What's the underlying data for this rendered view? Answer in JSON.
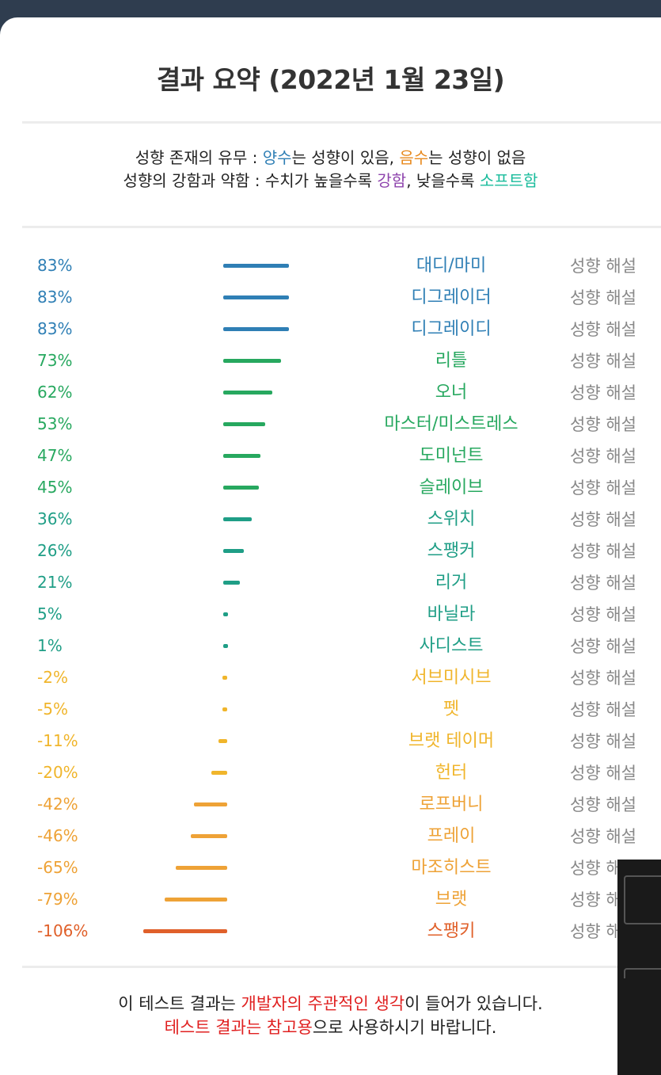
{
  "header": {
    "title": "결과 요약 (2022년 1월 23일)"
  },
  "legend": {
    "line1": {
      "prefix": "성향 존재의 유무 : ",
      "pos": "양수",
      "mid1": "는 성향이 있음, ",
      "neg": "음수",
      "mid2": "는 성향이 없음"
    },
    "line2": {
      "prefix": "성향의 강함과 약함 : 수치가 높을수록 ",
      "strong": "강함",
      "mid": ", 낮을수록 ",
      "soft": "소프트함"
    }
  },
  "interpret_label": "성향 해설",
  "results": [
    {
      "pct": "83%",
      "value": 83,
      "name": "대디/마미",
      "color": "#2f7fb5"
    },
    {
      "pct": "83%",
      "value": 83,
      "name": "디그레이더",
      "color": "#2f7fb5"
    },
    {
      "pct": "83%",
      "value": 83,
      "name": "디그레이디",
      "color": "#2f7fb5"
    },
    {
      "pct": "73%",
      "value": 73,
      "name": "리틀",
      "color": "#27a85f"
    },
    {
      "pct": "62%",
      "value": 62,
      "name": "오너",
      "color": "#27a85f"
    },
    {
      "pct": "53%",
      "value": 53,
      "name": "마스터/미스트레스",
      "color": "#27a85f"
    },
    {
      "pct": "47%",
      "value": 47,
      "name": "도미넌트",
      "color": "#27a85f"
    },
    {
      "pct": "45%",
      "value": 45,
      "name": "슬레이브",
      "color": "#27a85f"
    },
    {
      "pct": "36%",
      "value": 36,
      "name": "스위치",
      "color": "#1f9e86"
    },
    {
      "pct": "26%",
      "value": 26,
      "name": "스팽커",
      "color": "#1f9e86"
    },
    {
      "pct": "21%",
      "value": 21,
      "name": "리거",
      "color": "#1f9e86"
    },
    {
      "pct": "5%",
      "value": 5,
      "name": "바닐라",
      "color": "#1f9e86"
    },
    {
      "pct": "1%",
      "value": 1,
      "name": "사디스트",
      "color": "#1f9e86"
    },
    {
      "pct": "-2%",
      "value": -2,
      "name": "서브미시브",
      "color": "#f0b52b"
    },
    {
      "pct": "-5%",
      "value": -5,
      "name": "펫",
      "color": "#f0b52b"
    },
    {
      "pct": "-11%",
      "value": -11,
      "name": "브랫 테이머",
      "color": "#f0b52b"
    },
    {
      "pct": "-20%",
      "value": -20,
      "name": "헌터",
      "color": "#f0b52b"
    },
    {
      "pct": "-42%",
      "value": -42,
      "name": "로프버니",
      "color": "#eea236"
    },
    {
      "pct": "-46%",
      "value": -46,
      "name": "프레이",
      "color": "#eea236"
    },
    {
      "pct": "-65%",
      "value": -65,
      "name": "마조히스트",
      "color": "#eea236"
    },
    {
      "pct": "-79%",
      "value": -79,
      "name": "브랫",
      "color": "#eea236"
    },
    {
      "pct": "-106%",
      "value": -106,
      "name": "스팽키",
      "color": "#e0602a"
    }
  ],
  "footer": {
    "line1": {
      "a": "이 테스트 결과는 ",
      "b": "개발자의 주관적인 생각",
      "c": "이 들어가 있습니다."
    },
    "line2": {
      "a": "테스트 결과는 참고용",
      "b": "으로 사용하시기 바랍니다."
    }
  }
}
